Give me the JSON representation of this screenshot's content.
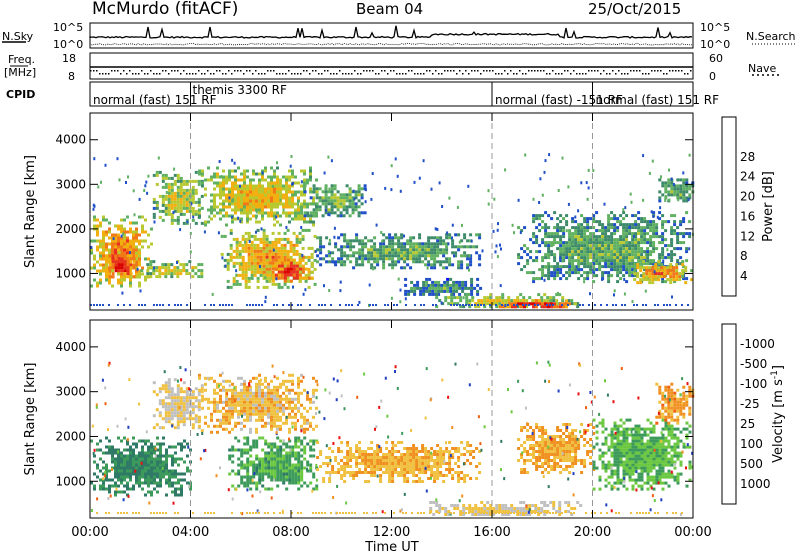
{
  "header": {
    "station": "McMurdo (fitACF)",
    "beam": "Beam 04",
    "date": "25/Oct/2015"
  },
  "top_panels": {
    "nsky_label": "N.Sky",
    "nsearch_label": "N.Search",
    "freq_label_line1": "Freq.",
    "freq_label_line2": "[MHz]",
    "nave_label": "Nave",
    "cpid_label": "CPID",
    "nsky_ticks": [
      "10^5",
      "10^0"
    ],
    "nsearch_ticks": [
      "10^5",
      "10^0"
    ],
    "freq_ticks": [
      "18",
      "8"
    ],
    "nave_ticks": [
      "60",
      "0"
    ]
  },
  "cpid_segments": [
    {
      "label": "normal (fast) 151 RF",
      "start_h": 0,
      "end_h": 4.0
    },
    {
      "label": "themis 3300 RF",
      "start_h": 4.0,
      "end_h": 16.0
    },
    {
      "label": "normal (fast) -151 RF",
      "start_h": 16.0,
      "end_h": 20.0
    },
    {
      "label": "normal (fast) 151 RF",
      "start_h": 20.0,
      "end_h": 24.0
    }
  ],
  "chart_data": [
    {
      "type": "heatmap",
      "name": "power",
      "xlabel": "Time UT",
      "ylabel": "Slant Range [km]",
      "xlim": [
        0,
        24
      ],
      "ylim": [
        180,
        4600
      ],
      "x_ticks": [
        "00:00",
        "04:00",
        "08:00",
        "12:00",
        "16:00",
        "20:00",
        "00:00"
      ],
      "y_ticks": [
        1000,
        2000,
        3000,
        4000
      ],
      "colorbar_label": "Power [dB]",
      "colorbar_ticks": [
        4,
        8,
        12,
        16,
        20,
        24,
        28
      ],
      "colorbar_colors": [
        "#1010ff",
        "#2050c8",
        "#3d8a6a",
        "#5fb060",
        "#b8c830",
        "#f2b010",
        "#f07818",
        "#e83020",
        "#d80000"
      ],
      "grid_lines_h": [
        4,
        16,
        20
      ],
      "echo_regions": [
        {
          "t0": 0.0,
          "t1": 2.4,
          "r0": 700,
          "r1": 2300,
          "level": 0.78
        },
        {
          "t0": 0.5,
          "t1": 1.8,
          "r0": 900,
          "r1": 1500,
          "level": 0.95
        },
        {
          "t0": 2.0,
          "t1": 4.5,
          "r0": 900,
          "r1": 1300,
          "level": 0.6
        },
        {
          "t0": 2.5,
          "t1": 4.5,
          "r0": 2100,
          "r1": 3300,
          "level": 0.55
        },
        {
          "t0": 4.3,
          "t1": 9.0,
          "r0": 2100,
          "r1": 3400,
          "level": 0.65
        },
        {
          "t0": 5.2,
          "t1": 9.0,
          "r0": 700,
          "r1": 2000,
          "level": 0.7
        },
        {
          "t0": 7.0,
          "t1": 8.8,
          "r0": 800,
          "r1": 1400,
          "level": 0.92
        },
        {
          "t0": 8.5,
          "t1": 11.0,
          "r0": 2300,
          "r1": 3000,
          "level": 0.45
        },
        {
          "t0": 9.0,
          "t1": 15.5,
          "r0": 1100,
          "r1": 1900,
          "level": 0.4
        },
        {
          "t0": 12.5,
          "t1": 15.5,
          "r0": 500,
          "r1": 900,
          "level": 0.35
        },
        {
          "t0": 13.5,
          "t1": 19.5,
          "r0": 230,
          "r1": 560,
          "level": 0.6
        },
        {
          "t0": 15.8,
          "t1": 19.5,
          "r0": 230,
          "r1": 420,
          "level": 0.95
        },
        {
          "t0": 17.0,
          "t1": 23.9,
          "r0": 800,
          "r1": 2400,
          "level": 0.4
        },
        {
          "t0": 21.5,
          "t1": 23.9,
          "r0": 800,
          "r1": 1300,
          "level": 0.75
        },
        {
          "t0": 22.5,
          "t1": 24.0,
          "r0": 2600,
          "r1": 3200,
          "level": 0.4
        }
      ]
    },
    {
      "type": "heatmap",
      "name": "velocity",
      "xlabel": "Time UT",
      "ylabel": "Slant Range [km]",
      "xlim": [
        0,
        24
      ],
      "ylim": [
        180,
        4600
      ],
      "x_ticks": [
        "00:00",
        "04:00",
        "08:00",
        "12:00",
        "16:00",
        "20:00",
        "00:00"
      ],
      "y_ticks": [
        1000,
        2000,
        3000,
        4000
      ],
      "colorbar_label": "Velocity [m s^-1]",
      "colorbar_ticks": [
        1000,
        500,
        100,
        25,
        -25,
        -100,
        -500,
        -1000
      ],
      "colorbar_colors": [
        "#2040c0",
        "#2e7a66",
        "#3c9a5a",
        "#6cc840",
        "#c0c0c0",
        "#f0c040",
        "#f09020",
        "#f06010",
        "#e81010"
      ],
      "grid_lines_h": [
        4,
        16,
        20
      ],
      "echo_regions": [
        {
          "t0": 0.0,
          "t1": 4.0,
          "r0": 700,
          "r1": 2000,
          "level": 0.22
        },
        {
          "t0": 2.5,
          "t1": 4.5,
          "r0": 2100,
          "r1": 3300,
          "level": 0.55
        },
        {
          "t0": 4.3,
          "t1": 9.0,
          "r0": 2100,
          "r1": 3400,
          "level": 0.62
        },
        {
          "t0": 5.5,
          "t1": 9.0,
          "r0": 800,
          "r1": 2000,
          "level": 0.3
        },
        {
          "t0": 9.0,
          "t1": 15.5,
          "r0": 1000,
          "r1": 1900,
          "level": 0.65
        },
        {
          "t0": 13.5,
          "t1": 19.5,
          "r0": 230,
          "r1": 560,
          "level": 0.55
        },
        {
          "t0": 17.0,
          "t1": 20.0,
          "r0": 1200,
          "r1": 2300,
          "level": 0.68
        },
        {
          "t0": 20.0,
          "t1": 23.9,
          "r0": 800,
          "r1": 2400,
          "level": 0.35
        },
        {
          "t0": 22.5,
          "t1": 24.0,
          "r0": 2300,
          "r1": 3200,
          "level": 0.7
        }
      ]
    }
  ]
}
